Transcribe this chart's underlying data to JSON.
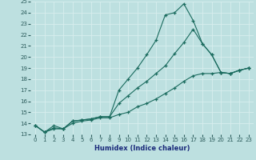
{
  "xlabel": "Humidex (Indice chaleur)",
  "xlim": [
    -0.5,
    23.5
  ],
  "ylim": [
    13,
    25
  ],
  "xticks": [
    0,
    1,
    2,
    3,
    4,
    5,
    6,
    7,
    8,
    9,
    10,
    11,
    12,
    13,
    14,
    15,
    16,
    17,
    18,
    19,
    20,
    21,
    22,
    23
  ],
  "yticks": [
    13,
    14,
    15,
    16,
    17,
    18,
    19,
    20,
    21,
    22,
    23,
    24,
    25
  ],
  "bg_color": "#bde0e0",
  "line_color": "#1a6b5e",
  "grid_color": "#d8eeee",
  "series1_x": [
    0,
    1,
    2,
    3,
    4,
    5,
    6,
    7,
    8,
    9,
    10,
    11,
    12,
    13,
    14,
    15,
    16,
    17,
    18,
    19,
    20,
    21,
    22,
    23
  ],
  "series1_y": [
    13.8,
    13.2,
    13.8,
    13.5,
    14.2,
    14.3,
    14.4,
    14.6,
    14.6,
    17.0,
    18.0,
    19.0,
    20.2,
    21.5,
    23.8,
    24.0,
    24.8,
    23.3,
    21.2,
    20.2,
    18.6,
    18.5,
    18.8,
    19.0
  ],
  "series2_x": [
    0,
    1,
    2,
    3,
    4,
    5,
    6,
    7,
    8,
    9,
    10,
    11,
    12,
    13,
    14,
    15,
    16,
    17,
    18,
    19,
    20,
    21,
    22,
    23
  ],
  "series2_y": [
    13.8,
    13.2,
    13.6,
    13.5,
    14.2,
    14.3,
    14.4,
    14.6,
    14.6,
    15.8,
    16.5,
    17.2,
    17.8,
    18.5,
    19.2,
    20.3,
    21.3,
    22.5,
    21.2,
    20.2,
    18.6,
    18.5,
    18.8,
    19.0
  ],
  "series3_x": [
    0,
    1,
    2,
    3,
    4,
    5,
    6,
    7,
    8,
    9,
    10,
    11,
    12,
    13,
    14,
    15,
    16,
    17,
    18,
    19,
    20,
    21,
    22,
    23
  ],
  "series3_y": [
    13.8,
    13.2,
    13.5,
    13.5,
    14.0,
    14.2,
    14.3,
    14.5,
    14.5,
    14.8,
    15.0,
    15.5,
    15.8,
    16.2,
    16.7,
    17.2,
    17.8,
    18.3,
    18.5,
    18.5,
    18.6,
    18.5,
    18.8,
    19.0
  ]
}
